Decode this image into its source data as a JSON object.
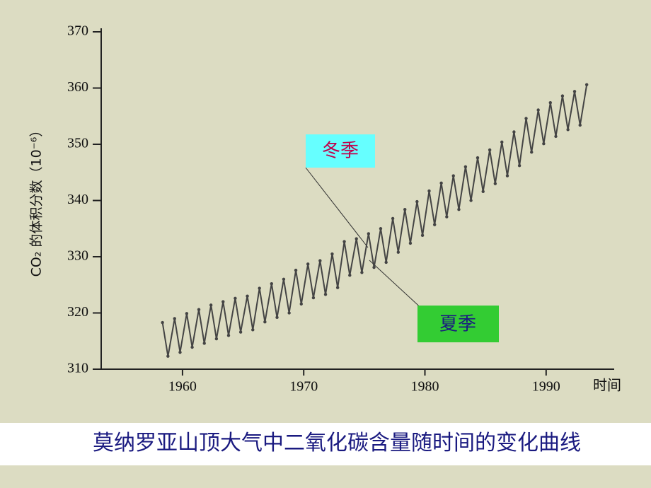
{
  "chart_data": {
    "type": "line",
    "ylabel": "CO₂ 的体积分数（10⁻⁶）",
    "xlabel": "时间",
    "caption": "莫纳罗亚山顶大气中二氧化碳含量随时间的变化曲线",
    "annotations": [
      {
        "text": "冬季",
        "color": "#66ffff"
      },
      {
        "text": "夏季",
        "color": "#33cc33"
      }
    ],
    "xlim": [
      1953,
      1995.5
    ],
    "xticks": [
      1960,
      1970,
      1980,
      1990
    ],
    "ylim": [
      310,
      370
    ],
    "yticks": [
      310,
      320,
      330,
      340,
      350,
      360,
      370
    ],
    "color": "#444444",
    "x": [
      1958.35,
      1958.8,
      1959.35,
      1959.8,
      1960.35,
      1960.8,
      1961.35,
      1961.8,
      1962.35,
      1962.8,
      1963.35,
      1963.8,
      1964.35,
      1964.8,
      1965.35,
      1965.8,
      1966.35,
      1966.8,
      1967.35,
      1967.8,
      1968.35,
      1968.8,
      1969.35,
      1969.8,
      1970.35,
      1970.8,
      1971.35,
      1971.8,
      1972.35,
      1972.8,
      1973.35,
      1973.8,
      1974.35,
      1974.8,
      1975.35,
      1975.8,
      1976.35,
      1976.8,
      1977.35,
      1977.8,
      1978.35,
      1978.8,
      1979.35,
      1979.8,
      1980.35,
      1980.8,
      1981.35,
      1981.8,
      1982.35,
      1982.8,
      1983.35,
      1983.8,
      1984.35,
      1984.8,
      1985.35,
      1985.8,
      1986.35,
      1986.8,
      1987.35,
      1987.8,
      1988.35,
      1988.8,
      1989.35,
      1989.8,
      1990.35,
      1990.8,
      1991.35,
      1991.8,
      1992.35,
      1992.8,
      1993.35
    ],
    "values": [
      318.3,
      312.3,
      319.0,
      313.0,
      319.9,
      313.9,
      320.6,
      314.6,
      321.4,
      315.4,
      322.0,
      316.0,
      322.6,
      316.6,
      323.0,
      317.0,
      324.4,
      318.4,
      325.2,
      319.2,
      326.0,
      320.0,
      327.6,
      321.6,
      328.7,
      322.7,
      329.3,
      323.3,
      330.5,
      324.5,
      332.7,
      326.7,
      333.2,
      327.2,
      334.1,
      328.1,
      335.0,
      329.0,
      336.8,
      330.8,
      338.4,
      332.4,
      339.8,
      333.8,
      341.7,
      335.7,
      343.1,
      337.1,
      344.4,
      338.4,
      346.0,
      340.0,
      347.6,
      341.6,
      349.0,
      343.0,
      350.4,
      344.4,
      352.2,
      346.2,
      354.6,
      348.6,
      356.1,
      350.1,
      357.4,
      351.4,
      358.6,
      352.6,
      359.4,
      353.4,
      360.6
    ]
  }
}
